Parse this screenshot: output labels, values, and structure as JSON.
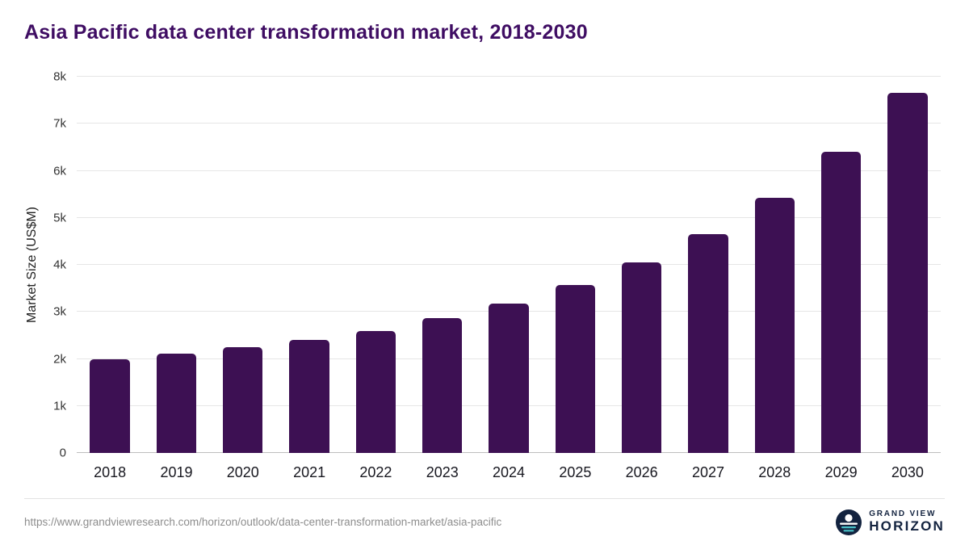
{
  "chart_data": {
    "type": "bar",
    "title": "Asia Pacific data center transformation market, 2018-2030",
    "categories": [
      "2018",
      "2019",
      "2020",
      "2021",
      "2022",
      "2023",
      "2024",
      "2025",
      "2026",
      "2027",
      "2028",
      "2029",
      "2030"
    ],
    "values": [
      2000,
      2120,
      2250,
      2400,
      2600,
      2860,
      3170,
      3570,
      4050,
      4650,
      5420,
      6400,
      7650
    ],
    "xlabel": "",
    "ylabel": "Market Size (US$M)",
    "ylim": [
      0,
      8000
    ],
    "yticks": [
      0,
      1000,
      2000,
      3000,
      4000,
      5000,
      6000,
      7000,
      8000
    ],
    "ytick_labels": [
      "0",
      "1k",
      "2k",
      "3k",
      "4k",
      "5k",
      "6k",
      "7k",
      "8k"
    ],
    "bar_color": "#3d1053",
    "grid": true,
    "legend": false
  },
  "footer": {
    "source_url": "https://www.grandviewresearch.com/horizon/outlook/data-center-transformation-market/asia-pacific",
    "logo": {
      "line1": "GRAND VIEW",
      "line2": "HORIZON",
      "icon": "horizon-sun-icon",
      "navy": "#13233f",
      "teal": "#49c2c9"
    }
  }
}
